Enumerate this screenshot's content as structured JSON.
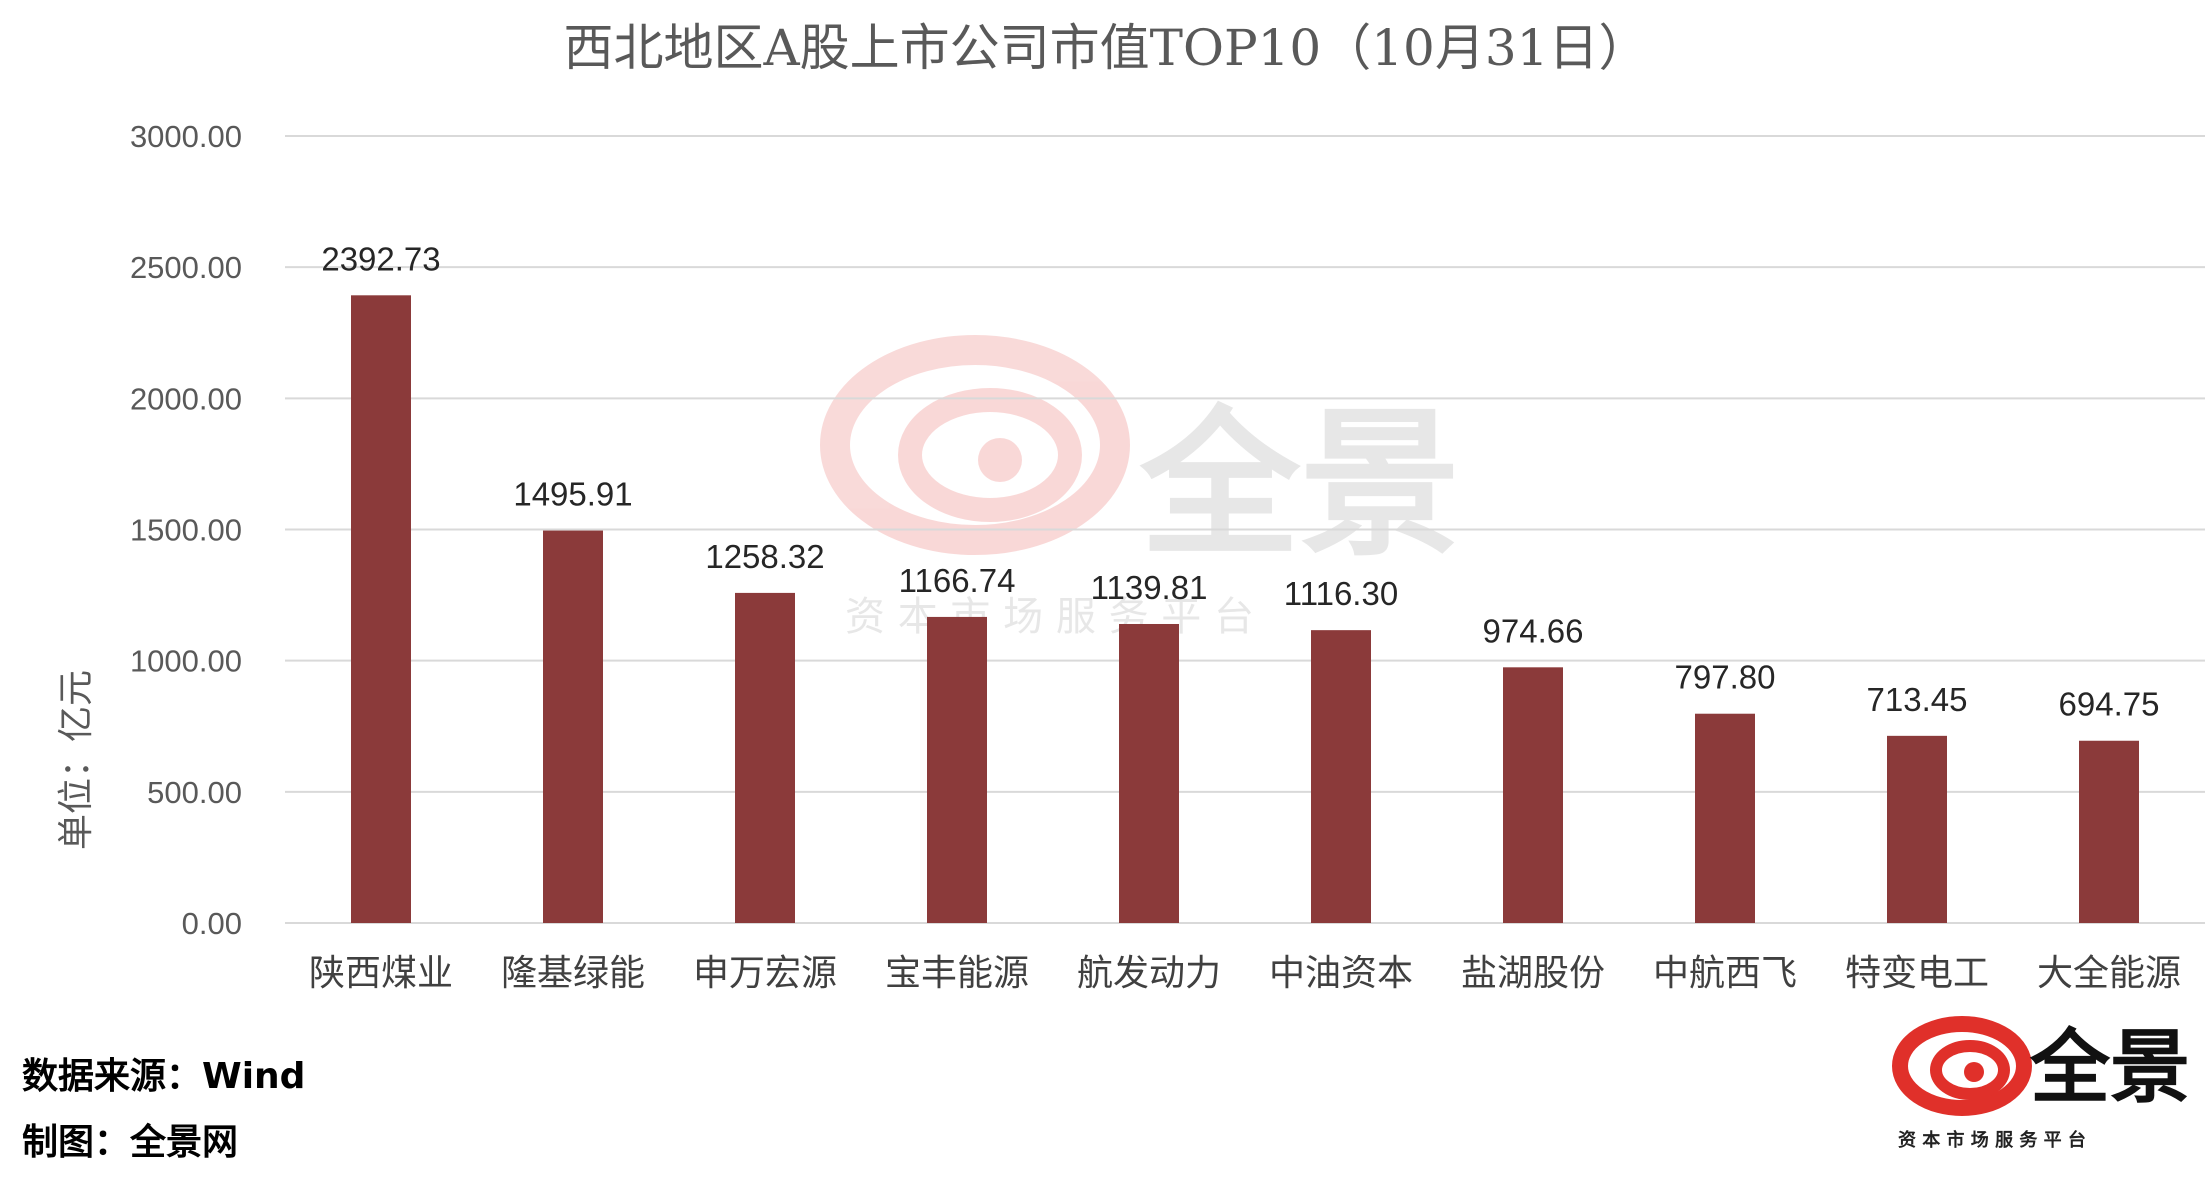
{
  "chart_data": {
    "type": "bar",
    "title": "西北地区A股上市公司市值TOP10（10月31日）",
    "ylabel": "单位：亿元",
    "xlabel": "",
    "ylim": [
      0,
      3000
    ],
    "yticks": [
      "0.00",
      "500.00",
      "1000.00",
      "1500.00",
      "2000.00",
      "2500.00",
      "3000.00"
    ],
    "grid": true,
    "categories": [
      "陕西煤业",
      "隆基绿能",
      "申万宏源",
      "宝丰能源",
      "航发动力",
      "中油资本",
      "盐湖股份",
      "中航西飞",
      "特变电工",
      "大全能源"
    ],
    "values": [
      2392.73,
      1495.91,
      1258.32,
      1166.74,
      1139.81,
      1116.3,
      974.66,
      797.8,
      713.45,
      694.75
    ],
    "data_labels": [
      "2392.73",
      "1495.91",
      "1258.32",
      "1166.74",
      "1139.81",
      "1116.30",
      "974.66",
      "797.80",
      "713.45",
      "694.75"
    ],
    "bar_color": "#8b3a3a"
  },
  "footer": {
    "source": "数据来源：Wind",
    "maker": "制图：全景网"
  },
  "logo": {
    "name": "全景",
    "slogan": "资 本 市 场 服 务 平 台",
    "icon": "quanjing-swirl-icon",
    "color": "#e0302a"
  },
  "watermark": {
    "name": "全景",
    "slogan": "资 本 市 场 服 务 平 台"
  }
}
